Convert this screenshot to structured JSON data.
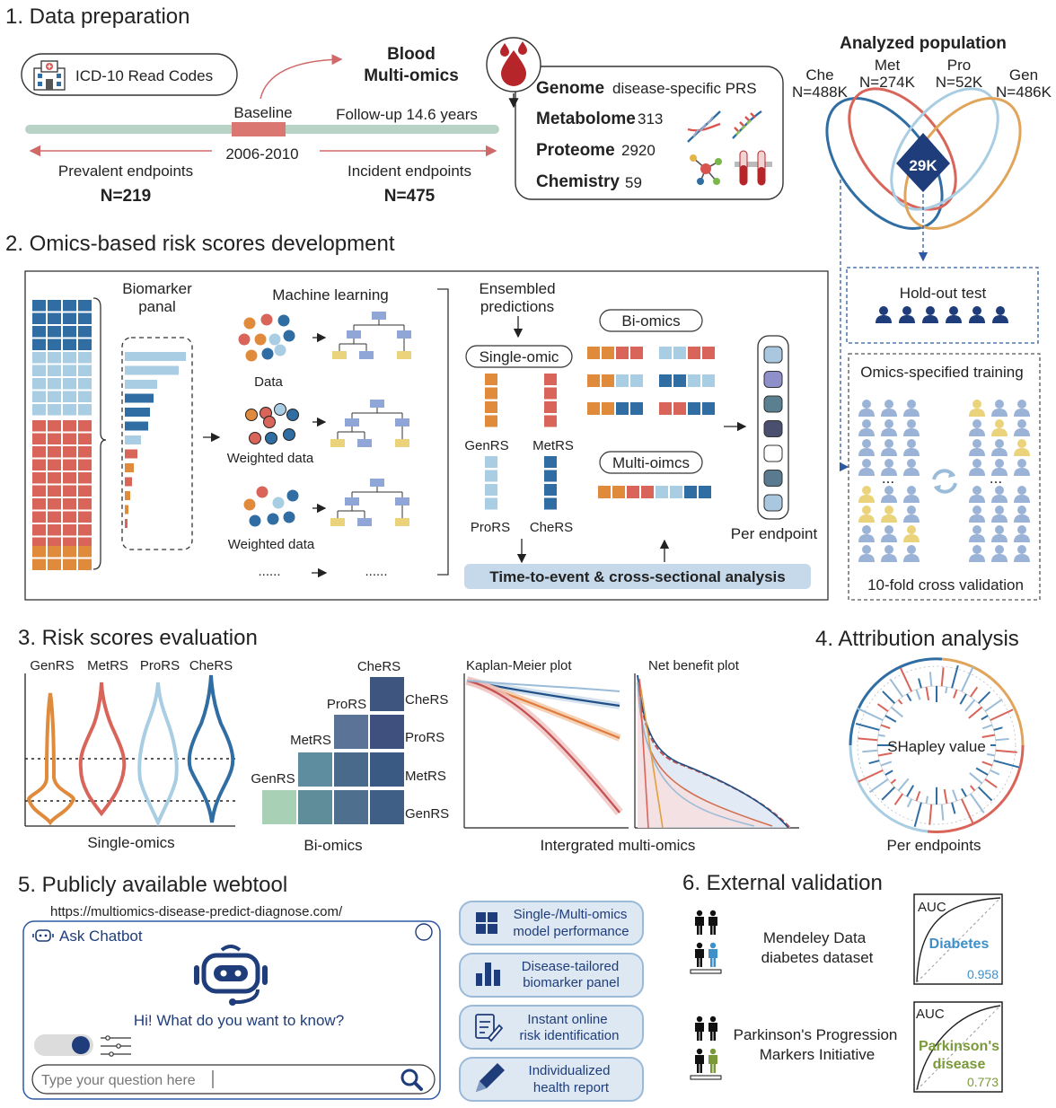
{
  "section1": {
    "title": "1. Data preparation",
    "icd_box": "ICD-10 Read Codes",
    "blood_title": [
      "Blood",
      "Multi-omics"
    ],
    "baseline": "Baseline",
    "baseline_years": "2006-2010",
    "followup": "Follow-up 14.6 years",
    "prevalent": {
      "label": "Prevalent endpoints",
      "n": "N=219"
    },
    "incident": {
      "label": "Incident endpoints",
      "n": "N=475"
    },
    "omics": [
      {
        "name": "Genome",
        "value": "disease-specific PRS"
      },
      {
        "name": "Metabolome",
        "value": "313"
      },
      {
        "name": "Proteome",
        "value": "2920"
      },
      {
        "name": "Chemistry",
        "value": "59"
      }
    ],
    "population": {
      "title": "Analyzed population",
      "sets": [
        {
          "name": "Che",
          "n": "N=488K",
          "color": "#2f6da3"
        },
        {
          "name": "Met",
          "n": "N=274K",
          "color": "#d9645a"
        },
        {
          "name": "Pro",
          "n": "N=52K",
          "color": "#a9cde3"
        },
        {
          "name": "Gen",
          "n": "N=486K",
          "color": "#e0a55a"
        }
      ],
      "intersection": "29K"
    }
  },
  "section2": {
    "title": "2. Omics-based risk scores development",
    "biomarker_panel": [
      "Biomarker",
      "panal"
    ],
    "machine_learning": "Machine learning",
    "data_labels": [
      "Data",
      "Weighted data",
      "Weighted data"
    ],
    "ellipsis": "......",
    "ensembled": [
      "Ensembled",
      "predictions"
    ],
    "single_omic": "Single-omic",
    "bi_omics": "Bi-omics",
    "multi_omics": "Multi-oimcs",
    "scores": [
      "GenRS",
      "MetRS",
      "ProRS",
      "CheRS"
    ],
    "per_endpoint": "Per endpoint",
    "analysis": "Time-to-event & cross-sectional analysis",
    "holdout": "Hold-out test",
    "training": "Omics-specified training",
    "cv": "10-fold cross validation",
    "ellipsis_small": "..."
  },
  "section3": {
    "title": "3. Risk scores evaluation",
    "violin_labels": [
      "GenRS",
      "MetRS",
      "ProRS",
      "CheRS"
    ],
    "single_omics": "Single-omics",
    "bi_row_labels": [
      "CheRS",
      "ProRS",
      "MetRS",
      "GenRS"
    ],
    "bi_col_labels": [
      "CheRS",
      "ProRS",
      "MetRS",
      "GenRS"
    ],
    "bi_omics": "Bi-omics",
    "km_title": "Kaplan-Meier plot",
    "nb_title": "Net benefit plot",
    "integrated": "Intergrated multi-omics"
  },
  "section4": {
    "title": "4. Attribution analysis",
    "shap": "SHapley value",
    "per_endpoints": "Per endpoints"
  },
  "section5": {
    "title": "5. Publicly available webtool",
    "url": "https://multiomics-disease-predict-diagnose.com/",
    "chatbot": "Ask Chatbot",
    "greeting": "Hi! What do you want to know?",
    "input_placeholder": "Type your question here",
    "buttons": [
      [
        "Single-/Multi-omics",
        "model performance"
      ],
      [
        "Disease-tailored",
        "biomarker panel"
      ],
      [
        "Instant online",
        "risk identification"
      ],
      [
        "Individualized",
        "health report"
      ]
    ]
  },
  "section6": {
    "title": "6. External validation",
    "datasets": [
      {
        "name": [
          "Mendeley Data",
          "diabetes dataset"
        ],
        "auc_label": "AUC",
        "disease": [
          "Diabetes"
        ],
        "auc": "0.958",
        "color": "#3f8fc9"
      },
      {
        "name": [
          "Parkinson's Progression",
          "Markers Initiative"
        ],
        "auc_label": "AUC",
        "disease": [
          "Parkinson's",
          "disease"
        ],
        "auc": "0.773",
        "color": "#7a9a3a"
      }
    ]
  },
  "colors": {
    "gen": "#e08a3c",
    "met": "#d9645a",
    "pro": "#a9cde3",
    "che": "#2f6da3",
    "navy": "#1f3d7a"
  }
}
